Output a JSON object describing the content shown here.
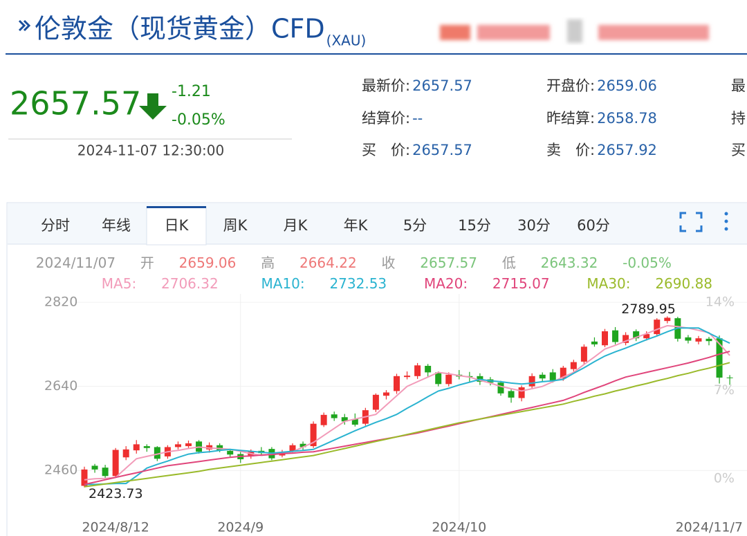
{
  "header": {
    "title": "伦敦金（现货黄金）CFD",
    "code": "(XAU)"
  },
  "quote": {
    "price": "2657.57",
    "change": "-1.21",
    "change_pct": "-0.05%",
    "time": "2024-11-07 12:30:00"
  },
  "fields": [
    [
      {
        "label": "最新价:",
        "value": "2657.57"
      },
      {
        "label": "开盘价:",
        "value": "2659.06"
      },
      {
        "label": "最"
      }
    ],
    [
      {
        "label": "结算价:",
        "value": "--"
      },
      {
        "label": "昨结算:",
        "value": "2658.78"
      },
      {
        "label": "持"
      }
    ],
    [
      {
        "label": "买　价:",
        "value": "2657.57"
      },
      {
        "label": "卖　价:",
        "value": "2657.92"
      },
      {
        "label": "买"
      }
    ]
  ],
  "tabs": [
    "分时",
    "年线",
    "日K",
    "周K",
    "月K",
    "年K",
    "5分",
    "15分",
    "30分",
    "60分"
  ],
  "active_tab": 2,
  "info": {
    "date": "2024/11/07",
    "open": "开",
    "high": "高",
    "close": "收",
    "low": "低"
  },
  "chart_data": {
    "type": "candlestick",
    "up_color": "#ee2f2f",
    "down_color": "#1fa51f",
    "categories": [
      null,
      null,
      null,
      "2024/8/12",
      null,
      null,
      null,
      null,
      null,
      null,
      null,
      null,
      null,
      null,
      null,
      "2024/9",
      null,
      null,
      null,
      null,
      null,
      null,
      null,
      null,
      null,
      null,
      null,
      null,
      null,
      null,
      null,
      null,
      null,
      null,
      null,
      null,
      "2024/10",
      null,
      null,
      null,
      null,
      null,
      null,
      null,
      null,
      null,
      null,
      null,
      null,
      null,
      null,
      null,
      null,
      null,
      null,
      null,
      null,
      null,
      null,
      null,
      null,
      null,
      "2024/11/7"
    ],
    "candles": [
      [
        2427,
        2468,
        2423.73,
        2462
      ],
      [
        2470,
        2474,
        2455,
        2462
      ],
      [
        2466,
        2472,
        2443,
        2448
      ],
      [
        2448,
        2508,
        2444,
        2504
      ],
      [
        2488,
        2512,
        2482,
        2505
      ],
      [
        2503,
        2525,
        2496,
        2516
      ],
      [
        2512,
        2516,
        2500,
        2508
      ],
      [
        2510,
        2512,
        2480,
        2485
      ],
      [
        2490,
        2514,
        2485,
        2510
      ],
      [
        2510,
        2522,
        2505,
        2516
      ],
      [
        2512,
        2524,
        2506,
        2518
      ],
      [
        2522,
        2525,
        2496,
        2500
      ],
      [
        2505,
        2520,
        2498,
        2514
      ],
      [
        2514,
        2518,
        2499,
        2503
      ],
      [
        2502,
        2506,
        2488,
        2494
      ],
      [
        2495,
        2500,
        2476,
        2484
      ],
      [
        2490,
        2505,
        2485,
        2500
      ],
      [
        2502,
        2510,
        2492,
        2497
      ],
      [
        2506,
        2510,
        2482,
        2486
      ],
      [
        2492,
        2504,
        2488,
        2498
      ],
      [
        2500,
        2518,
        2496,
        2514
      ],
      [
        2517,
        2522,
        2503,
        2510
      ],
      [
        2512,
        2565,
        2508,
        2560
      ],
      [
        2557,
        2584,
        2553,
        2579
      ],
      [
        2580,
        2586,
        2566,
        2572
      ],
      [
        2574,
        2581,
        2558,
        2565
      ],
      [
        2570,
        2582,
        2554,
        2558
      ],
      [
        2560,
        2594,
        2556,
        2589
      ],
      [
        2590,
        2625,
        2585,
        2622
      ],
      [
        2620,
        2632,
        2612,
        2627
      ],
      [
        2630,
        2667,
        2624,
        2662
      ],
      [
        2660,
        2672,
        2655,
        2663
      ],
      [
        2662,
        2690,
        2656,
        2685
      ],
      [
        2684,
        2688,
        2660,
        2670
      ],
      [
        2670,
        2672,
        2640,
        2645
      ],
      [
        2645,
        2670,
        2640,
        2665
      ],
      [
        2665,
        2675,
        2655,
        2661
      ],
      [
        2662,
        2671,
        2650,
        2660
      ],
      [
        2662,
        2668,
        2643,
        2650
      ],
      [
        2655,
        2660,
        2642,
        2648
      ],
      [
        2648,
        2652,
        2620,
        2625
      ],
      [
        2630,
        2636,
        2605,
        2616
      ],
      [
        2615,
        2642,
        2608,
        2638
      ],
      [
        2640,
        2668,
        2636,
        2662
      ],
      [
        2665,
        2670,
        2650,
        2657
      ],
      [
        2670,
        2677,
        2648,
        2653
      ],
      [
        2657,
        2684,
        2652,
        2680
      ],
      [
        2677,
        2697,
        2672,
        2692
      ],
      [
        2693,
        2730,
        2688,
        2725
      ],
      [
        2736,
        2745,
        2725,
        2730
      ],
      [
        2728,
        2763,
        2724,
        2758
      ],
      [
        2760,
        2767,
        2730,
        2735
      ],
      [
        2733,
        2756,
        2728,
        2750
      ],
      [
        2758,
        2762,
        2737,
        2743
      ],
      [
        2743,
        2758,
        2738,
        2752
      ],
      [
        2752,
        2786,
        2748,
        2783
      ],
      [
        2780,
        2789.95,
        2775,
        2787
      ],
      [
        2786,
        2789,
        2736,
        2742
      ],
      [
        2745,
        2750,
        2732,
        2738
      ],
      [
        2736,
        2748,
        2730,
        2743
      ],
      [
        2742,
        2746,
        2728,
        2737
      ],
      [
        2743,
        2749,
        2646,
        2658.78
      ],
      [
        2659.06,
        2664.22,
        2643.32,
        2657.57
      ]
    ],
    "series": [
      {
        "name": "MA5:",
        "color": "#f29bb9",
        "values": [
          2440,
          2442,
          2443,
          2445,
          2465,
          2485,
          2490,
          2495,
          2500,
          2503,
          2507,
          2510,
          2508,
          2507,
          2505,
          2501,
          2496,
          2492,
          2495,
          2497,
          2500,
          2510,
          2520,
          2535,
          2550,
          2565,
          2570,
          2575,
          2580,
          2600,
          2620,
          2640,
          2650,
          2660,
          2670,
          2667,
          2663,
          2660,
          2653,
          2647,
          2640,
          2635,
          2630,
          2635,
          2640,
          2650,
          2660,
          2670,
          2687,
          2703,
          2720,
          2728,
          2737,
          2745,
          2753,
          2762,
          2770,
          2768,
          2765,
          2760,
          2755,
          2731,
          2706.32
        ]
      },
      {
        "name": "MA10:",
        "color": "#2ab3d0",
        "values": [
          2430,
          2430,
          2431,
          2432,
          2432,
          2448,
          2465,
          2473,
          2480,
          2488,
          2495,
          2498,
          2500,
          2503,
          2505,
          2503,
          2501,
          2499,
          2497,
          2499,
          2501,
          2503,
          2505,
          2515,
          2525,
          2535,
          2545,
          2554,
          2563,
          2571,
          2580,
          2593,
          2605,
          2618,
          2630,
          2636,
          2643,
          2649,
          2655,
          2652,
          2650,
          2647,
          2645,
          2647,
          2650,
          2652,
          2655,
          2668,
          2680,
          2693,
          2705,
          2714,
          2722,
          2731,
          2740,
          2748,
          2757,
          2765,
          2765,
          2765,
          2754,
          2743,
          2732.53
        ]
      },
      {
        "name": "MA20:",
        "color": "#e0457b",
        "values": [
          2430,
          2435,
          2440,
          2445,
          2450,
          2455,
          2460,
          2465,
          2470,
          2473,
          2476,
          2479,
          2482,
          2485,
          2488,
          2490,
          2491,
          2493,
          2494,
          2496,
          2497,
          2499,
          2500,
          2504,
          2508,
          2512,
          2516,
          2520,
          2524,
          2528,
          2532,
          2536,
          2540,
          2545,
          2550,
          2555,
          2560,
          2565,
          2570,
          2575,
          2580,
          2585,
          2590,
          2595,
          2600,
          2605,
          2610,
          2618,
          2627,
          2635,
          2643,
          2652,
          2660,
          2665,
          2670,
          2675,
          2680,
          2685,
          2690,
          2696,
          2702,
          2709,
          2715.07
        ]
      },
      {
        "name": "MA30:",
        "color": "#9aba2a",
        "values": [
          2425,
          2428,
          2431,
          2434,
          2437,
          2440,
          2443,
          2446,
          2449,
          2452,
          2455,
          2458,
          2462,
          2465,
          2468,
          2471,
          2474,
          2477,
          2480,
          2483,
          2486,
          2489,
          2492,
          2497,
          2502,
          2507,
          2512,
          2517,
          2522,
          2527,
          2532,
          2537,
          2542,
          2547,
          2552,
          2557,
          2562,
          2566,
          2570,
          2574,
          2578,
          2582,
          2586,
          2590,
          2594,
          2598,
          2602,
          2608,
          2613,
          2619,
          2624,
          2630,
          2635,
          2641,
          2646,
          2652,
          2657,
          2663,
          2668,
          2674,
          2679,
          2685,
          2690.88
        ]
      }
    ],
    "ylim": [
      2364,
      2838
    ],
    "yticks": [
      2460,
      2640,
      2820
    ],
    "y2lim": [
      -2.9,
      14.66
    ],
    "y2ticks": [
      {
        "value": 0,
        "label": "0%"
      },
      {
        "value": 7,
        "label": "7%"
      },
      {
        "value": 14,
        "label": "14%"
      }
    ]
  }
}
